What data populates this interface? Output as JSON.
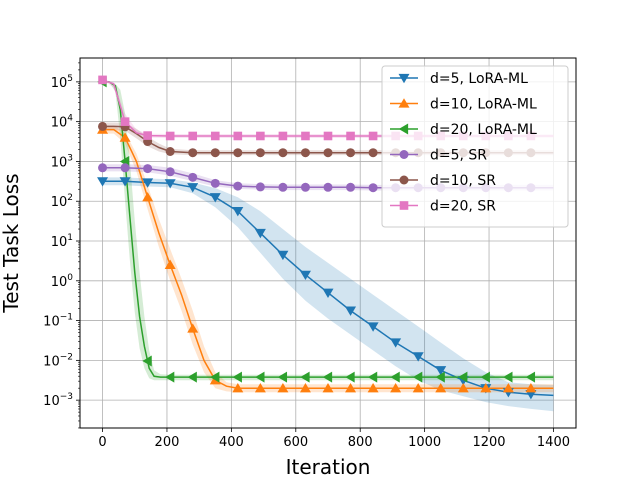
{
  "chart_data": {
    "type": "line",
    "title": "",
    "xlabel": "Iteration",
    "ylabel": "Test Task Loss",
    "xlim": [
      -70,
      1470
    ],
    "ylim_log10": [
      -3.7,
      5.6
    ],
    "yscale": "log",
    "grid": true,
    "legend_position": "top-right",
    "x_ticks": [
      0,
      200,
      400,
      600,
      800,
      1000,
      1200,
      1400
    ],
    "x_tick_labels": [
      "0",
      "200",
      "400",
      "600",
      "800",
      "1000",
      "1200",
      "1400"
    ],
    "y_ticks_log10": [
      -3,
      -2,
      -1,
      0,
      1,
      2,
      3,
      4,
      5
    ],
    "y_tick_bases": [
      "10",
      "10",
      "10",
      "10",
      "10",
      "10",
      "10",
      "10",
      "10"
    ],
    "y_tick_exponents": [
      "−3",
      "−2",
      "−1",
      "0",
      "1",
      "2",
      "3",
      "4",
      "5"
    ],
    "series": [
      {
        "name": "d=5, LoRA-ML",
        "color": "#1f77b4",
        "marker": "triangle-down",
        "x": [
          0,
          70,
          140,
          210,
          280,
          350,
          420,
          490,
          560,
          630,
          700,
          770,
          840,
          910,
          980,
          1050,
          1120,
          1190,
          1260,
          1330,
          1400
        ],
        "log10": [
          2.5,
          2.5,
          2.47,
          2.45,
          2.35,
          2.1,
          1.75,
          1.2,
          0.65,
          0.15,
          -0.3,
          -0.75,
          -1.15,
          -1.55,
          -1.9,
          -2.25,
          -2.5,
          -2.7,
          -2.8,
          -2.85,
          -2.88
        ],
        "band_upper_log10": [
          2.6,
          2.6,
          2.57,
          2.55,
          2.47,
          2.33,
          2.1,
          1.75,
          1.3,
          0.85,
          0.45,
          0.05,
          -0.35,
          -0.75,
          -1.15,
          -1.55,
          -1.95,
          -2.3,
          -2.55,
          -2.6,
          -2.62
        ],
        "band_lower_log10": [
          2.4,
          2.4,
          2.37,
          2.35,
          2.2,
          1.85,
          1.35,
          0.7,
          0.05,
          -0.5,
          -0.95,
          -1.35,
          -1.75,
          -2.15,
          -2.5,
          -2.75,
          -2.9,
          -3.05,
          -3.15,
          -3.22,
          -3.28
        ],
        "marker_x": [
          0,
          70,
          140,
          210,
          280,
          350,
          420,
          490,
          560,
          630,
          700,
          770,
          840,
          910,
          980,
          1050,
          1120,
          1190,
          1260,
          1330
        ]
      },
      {
        "name": "d=10, LoRA-ML",
        "color": "#ff7f0e",
        "marker": "triangle-up",
        "x": [
          0,
          35,
          70,
          105,
          140,
          175,
          210,
          245,
          280,
          315,
          350,
          385,
          420,
          490,
          560,
          700,
          900,
          1100,
          1400
        ],
        "log10": [
          3.8,
          3.8,
          3.6,
          3.0,
          2.1,
          1.2,
          0.4,
          -0.35,
          -1.2,
          -2.0,
          -2.5,
          -2.65,
          -2.7,
          -2.7,
          -2.7,
          -2.7,
          -2.7,
          -2.7,
          -2.7
        ],
        "band_upper_log10": [
          3.9,
          3.9,
          3.72,
          3.2,
          2.4,
          1.55,
          0.8,
          0.05,
          -0.75,
          -1.65,
          -2.3,
          -2.55,
          -2.6,
          -2.6,
          -2.6,
          -2.6,
          -2.6,
          -2.6,
          -2.6
        ],
        "band_lower_log10": [
          3.7,
          3.7,
          3.45,
          2.75,
          1.8,
          0.85,
          0.0,
          -0.75,
          -1.6,
          -2.3,
          -2.7,
          -2.78,
          -2.8,
          -2.8,
          -2.8,
          -2.8,
          -2.8,
          -2.8,
          -2.8
        ],
        "marker_x": [
          0,
          70,
          140,
          210,
          280,
          350,
          420,
          490,
          560,
          630,
          700,
          770,
          840,
          910,
          980,
          1050,
          1120,
          1190,
          1260,
          1330
        ]
      },
      {
        "name": "d=20, LoRA-ML",
        "color": "#2ca02c",
        "marker": "triangle-left",
        "x": [
          0,
          20,
          40,
          55,
          70,
          85,
          100,
          115,
          130,
          145,
          160,
          180,
          210,
          300,
          500,
          800,
          1100,
          1400
        ],
        "log10": [
          5.0,
          5.0,
          4.9,
          4.3,
          3.0,
          1.6,
          0.2,
          -0.9,
          -1.65,
          -2.2,
          -2.4,
          -2.42,
          -2.42,
          -2.42,
          -2.42,
          -2.42,
          -2.42,
          -2.42
        ],
        "band_upper_log10": [
          5.0,
          5.0,
          4.95,
          4.8,
          4.2,
          3.0,
          1.5,
          0.2,
          -0.9,
          -1.75,
          -2.25,
          -2.35,
          -2.36,
          -2.36,
          -2.36,
          -2.36,
          -2.36,
          -2.36
        ],
        "band_lower_log10": [
          5.0,
          5.0,
          4.75,
          3.6,
          2.0,
          0.5,
          -0.8,
          -1.7,
          -2.2,
          -2.45,
          -2.5,
          -2.5,
          -2.5,
          -2.5,
          -2.5,
          -2.5,
          -2.5,
          -2.5
        ],
        "marker_x": [
          0,
          70,
          140,
          210,
          280,
          350,
          420,
          490,
          560,
          630,
          700,
          770,
          840,
          910,
          980,
          1050,
          1120,
          1190,
          1260,
          1330
        ]
      },
      {
        "name": "d=5, SR",
        "color": "#9467bd",
        "marker": "circle",
        "x": [
          0,
          70,
          140,
          210,
          280,
          350,
          420,
          490,
          560,
          630,
          700,
          770,
          840,
          910,
          980,
          1050,
          1120,
          1190,
          1260,
          1330,
          1400
        ],
        "log10": [
          2.84,
          2.84,
          2.82,
          2.74,
          2.6,
          2.45,
          2.38,
          2.36,
          2.35,
          2.35,
          2.35,
          2.35,
          2.34,
          2.34,
          2.34,
          2.34,
          2.34,
          2.34,
          2.34,
          2.34,
          2.34
        ],
        "band_upper_log10": [
          2.93,
          2.93,
          2.91,
          2.84,
          2.7,
          2.53,
          2.45,
          2.43,
          2.42,
          2.42,
          2.42,
          2.42,
          2.41,
          2.41,
          2.41,
          2.41,
          2.41,
          2.41,
          2.41,
          2.41,
          2.41
        ],
        "band_lower_log10": [
          2.75,
          2.75,
          2.73,
          2.64,
          2.5,
          2.37,
          2.31,
          2.29,
          2.28,
          2.28,
          2.28,
          2.28,
          2.27,
          2.27,
          2.27,
          2.27,
          2.27,
          2.27,
          2.27,
          2.27,
          2.27
        ],
        "marker_x": [
          0,
          70,
          140,
          210,
          280,
          350,
          420,
          490,
          560,
          630,
          700,
          770,
          840,
          910,
          980,
          1050,
          1120,
          1190,
          1260,
          1330
        ]
      },
      {
        "name": "d=10, SR",
        "color": "#8c564b",
        "marker": "circle",
        "x": [
          0,
          35,
          70,
          105,
          140,
          175,
          210,
          280,
          350,
          420,
          700,
          1000,
          1400
        ],
        "log10": [
          3.88,
          3.88,
          3.87,
          3.7,
          3.5,
          3.35,
          3.25,
          3.22,
          3.22,
          3.22,
          3.22,
          3.22,
          3.22
        ],
        "band_upper_log10": [
          3.98,
          3.98,
          3.97,
          3.82,
          3.62,
          3.45,
          3.32,
          3.28,
          3.28,
          3.28,
          3.28,
          3.28,
          3.28
        ],
        "band_lower_log10": [
          3.78,
          3.78,
          3.77,
          3.58,
          3.38,
          3.25,
          3.18,
          3.16,
          3.16,
          3.16,
          3.16,
          3.16,
          3.16
        ],
        "marker_x": [
          0,
          70,
          140,
          210,
          280,
          350,
          420,
          490,
          560,
          630,
          700,
          770,
          840,
          910,
          980,
          1050,
          1120,
          1190,
          1260,
          1330
        ]
      },
      {
        "name": "d=20, SR",
        "color": "#e377c2",
        "marker": "square",
        "x": [
          0,
          35,
          70,
          105,
          140,
          210,
          300,
          600,
          1000,
          1400
        ],
        "log10": [
          5.05,
          4.95,
          4.0,
          3.72,
          3.65,
          3.64,
          3.64,
          3.64,
          3.64,
          3.64
        ],
        "band_upper_log10": [
          5.05,
          5.0,
          4.2,
          3.8,
          3.7,
          3.69,
          3.69,
          3.69,
          3.69,
          3.69
        ],
        "band_lower_log10": [
          5.05,
          4.85,
          3.85,
          3.66,
          3.6,
          3.59,
          3.59,
          3.59,
          3.59,
          3.59
        ],
        "marker_x": [
          0,
          70,
          140,
          210,
          280,
          350,
          420,
          490,
          560,
          630,
          700,
          770,
          840,
          910,
          980,
          1050,
          1120,
          1190,
          1260,
          1330
        ]
      }
    ]
  }
}
